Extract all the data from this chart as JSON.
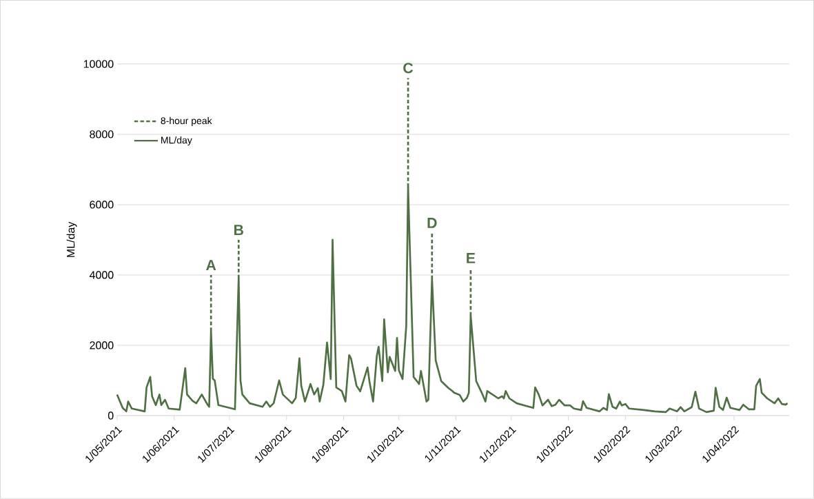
{
  "chart_data": {
    "type": "line",
    "ylabel": "ML/day",
    "xlim": [
      "2021-05-01",
      "2022-05-01"
    ],
    "ylim": [
      0,
      10000
    ],
    "xticks": [
      {
        "value": "2021-05-01",
        "label": "1/05/2021"
      },
      {
        "value": "2021-06-01",
        "label": "1/06/2021"
      },
      {
        "value": "2021-07-01",
        "label": "1/07/2021"
      },
      {
        "value": "2021-08-01",
        "label": "1/08/2021"
      },
      {
        "value": "2021-09-01",
        "label": "1/09/2021"
      },
      {
        "value": "2021-10-01",
        "label": "1/10/2021"
      },
      {
        "value": "2021-11-01",
        "label": "1/11/2021"
      },
      {
        "value": "2021-12-01",
        "label": "1/12/2021"
      },
      {
        "value": "2022-01-01",
        "label": "1/01/2022"
      },
      {
        "value": "2022-02-01",
        "label": "1/02/2022"
      },
      {
        "value": "2022-03-01",
        "label": "1/03/2022"
      },
      {
        "value": "2022-04-01",
        "label": "1/04/2022"
      }
    ],
    "yticks": [
      0,
      2000,
      4000,
      6000,
      8000,
      10000
    ],
    "grid": "y",
    "legend": "top left",
    "series": [
      {
        "name": "8-hour peak",
        "color": "#4e7042",
        "line_style": "dashed",
        "x": [
          "2021-06-21",
          "2021-06-21",
          null,
          "2021-07-06",
          "2021-07-06",
          null,
          "2021-10-06",
          "2021-10-06",
          null,
          "2021-10-19",
          "2021-10-19",
          null,
          "2021-11-09",
          "2021-11-09"
        ],
        "values": [
          2400,
          4000,
          null,
          3900,
          5000,
          null,
          6500,
          9600,
          null,
          3880,
          5200,
          null,
          2840,
          4200
        ]
      },
      {
        "name": "ML/day",
        "color": "#4e7042",
        "line_style": "solid",
        "x": [
          "2021-05-01",
          "2021-05-04",
          "2021-05-06",
          "2021-05-07",
          "2021-05-09",
          "2021-05-16",
          "2021-05-17",
          "2021-05-19",
          "2021-05-20",
          "2021-05-22",
          "2021-05-24",
          "2021-05-25",
          "2021-05-27",
          "2021-05-29",
          "2021-06-04",
          "2021-06-07",
          "2021-06-08",
          "2021-06-11",
          "2021-06-13",
          "2021-06-16",
          "2021-06-19",
          "2021-06-20",
          "2021-06-21",
          "2021-06-22",
          "2021-06-23",
          "2021-06-25",
          "2021-07-04",
          "2021-07-06",
          "2021-07-07",
          "2021-07-08",
          "2021-07-12",
          "2021-07-19",
          "2021-07-21",
          "2021-07-23",
          "2021-07-25",
          "2021-07-28",
          "2021-07-30",
          "2021-08-04",
          "2021-08-06",
          "2021-08-08",
          "2021-08-09",
          "2021-08-11",
          "2021-08-14",
          "2021-08-16",
          "2021-08-18",
          "2021-08-19",
          "2021-08-21",
          "2021-08-23",
          "2021-08-25",
          "2021-08-26",
          "2021-08-28",
          "2021-08-31",
          "2021-09-02",
          "2021-09-04",
          "2021-09-05",
          "2021-09-08",
          "2021-09-10",
          "2021-09-14",
          "2021-09-15",
          "2021-09-17",
          "2021-09-19",
          "2021-09-20",
          "2021-09-22",
          "2021-09-23",
          "2021-09-25",
          "2021-09-26",
          "2021-09-29",
          "2021-09-30",
          "2021-10-01",
          "2021-10-03",
          "2021-10-05",
          "2021-10-06",
          "2021-10-09",
          "2021-10-12",
          "2021-10-13",
          "2021-10-16",
          "2021-10-17",
          "2021-10-19",
          "2021-10-21",
          "2021-10-24",
          "2021-10-28",
          "2021-10-30",
          "2021-10-31",
          "2021-11-03",
          "2021-11-05",
          "2021-11-07",
          "2021-11-08",
          "2021-11-09",
          "2021-11-12",
          "2021-11-15",
          "2021-11-17",
          "2021-11-18",
          "2021-11-24",
          "2021-11-26",
          "2021-11-27",
          "2021-11-28",
          "2021-11-30",
          "2021-12-04",
          "2021-12-13",
          "2021-12-14",
          "2021-12-16",
          "2021-12-18",
          "2021-12-21",
          "2021-12-23",
          "2021-12-25",
          "2021-12-27",
          "2021-12-30",
          "2022-01-02",
          "2022-01-04",
          "2022-01-08",
          "2022-01-09",
          "2022-01-11",
          "2022-01-18",
          "2022-01-20",
          "2022-01-22",
          "2022-01-23",
          "2022-01-25",
          "2022-01-27",
          "2022-01-29",
          "2022-01-30",
          "2022-02-01",
          "2022-02-03",
          "2022-02-11",
          "2022-02-17",
          "2022-02-23",
          "2022-02-25",
          "2022-03-01",
          "2022-03-03",
          "2022-03-05",
          "2022-03-09",
          "2022-03-11",
          "2022-03-13",
          "2022-03-17",
          "2022-03-21",
          "2022-03-22",
          "2022-03-24",
          "2022-03-26",
          "2022-03-28",
          "2022-03-30",
          "2022-04-04",
          "2022-04-06",
          "2022-04-09",
          "2022-04-12",
          "2022-04-13",
          "2022-04-15",
          "2022-04-16",
          "2022-04-19",
          "2022-04-23",
          "2022-04-25",
          "2022-04-27",
          "2022-04-29",
          "2022-04-30"
        ],
        "values": [
          600,
          220,
          120,
          400,
          200,
          120,
          800,
          1100,
          550,
          300,
          600,
          300,
          450,
          200,
          170,
          1350,
          600,
          420,
          350,
          600,
          320,
          250,
          2400,
          1050,
          1000,
          300,
          180,
          3900,
          1000,
          600,
          350,
          250,
          400,
          250,
          350,
          1000,
          600,
          350,
          500,
          1630,
          850,
          400,
          900,
          600,
          780,
          400,
          880,
          2080,
          1040,
          5000,
          800,
          700,
          400,
          1720,
          1630,
          850,
          690,
          1370,
          980,
          400,
          1690,
          1960,
          980,
          2740,
          1230,
          1670,
          1270,
          2210,
          1290,
          1040,
          2550,
          6500,
          1100,
          900,
          1270,
          400,
          450,
          3880,
          1570,
          980,
          780,
          700,
          650,
          590,
          400,
          510,
          650,
          2840,
          980,
          650,
          400,
          700,
          490,
          550,
          490,
          700,
          490,
          350,
          220,
          800,
          590,
          290,
          450,
          270,
          310,
          450,
          290,
          290,
          200,
          160,
          410,
          220,
          120,
          220,
          160,
          610,
          250,
          200,
          400,
          290,
          330,
          200,
          160,
          120,
          100,
          200,
          120,
          240,
          120,
          240,
          680,
          200,
          100,
          140,
          790,
          250,
          160,
          510,
          220,
          160,
          310,
          180,
          180,
          850,
          1040,
          650,
          490,
          350,
          490,
          330,
          310,
          350
        ]
      }
    ],
    "annotations": [
      {
        "text": "A",
        "x": "2021-06-21",
        "y": 4000
      },
      {
        "text": "B",
        "x": "2021-07-06",
        "y": 5000
      },
      {
        "text": "C",
        "x": "2021-10-06",
        "y": 9600
      },
      {
        "text": "D",
        "x": "2021-10-19",
        "y": 5200
      },
      {
        "text": "E",
        "x": "2021-11-09",
        "y": 4200
      }
    ]
  }
}
